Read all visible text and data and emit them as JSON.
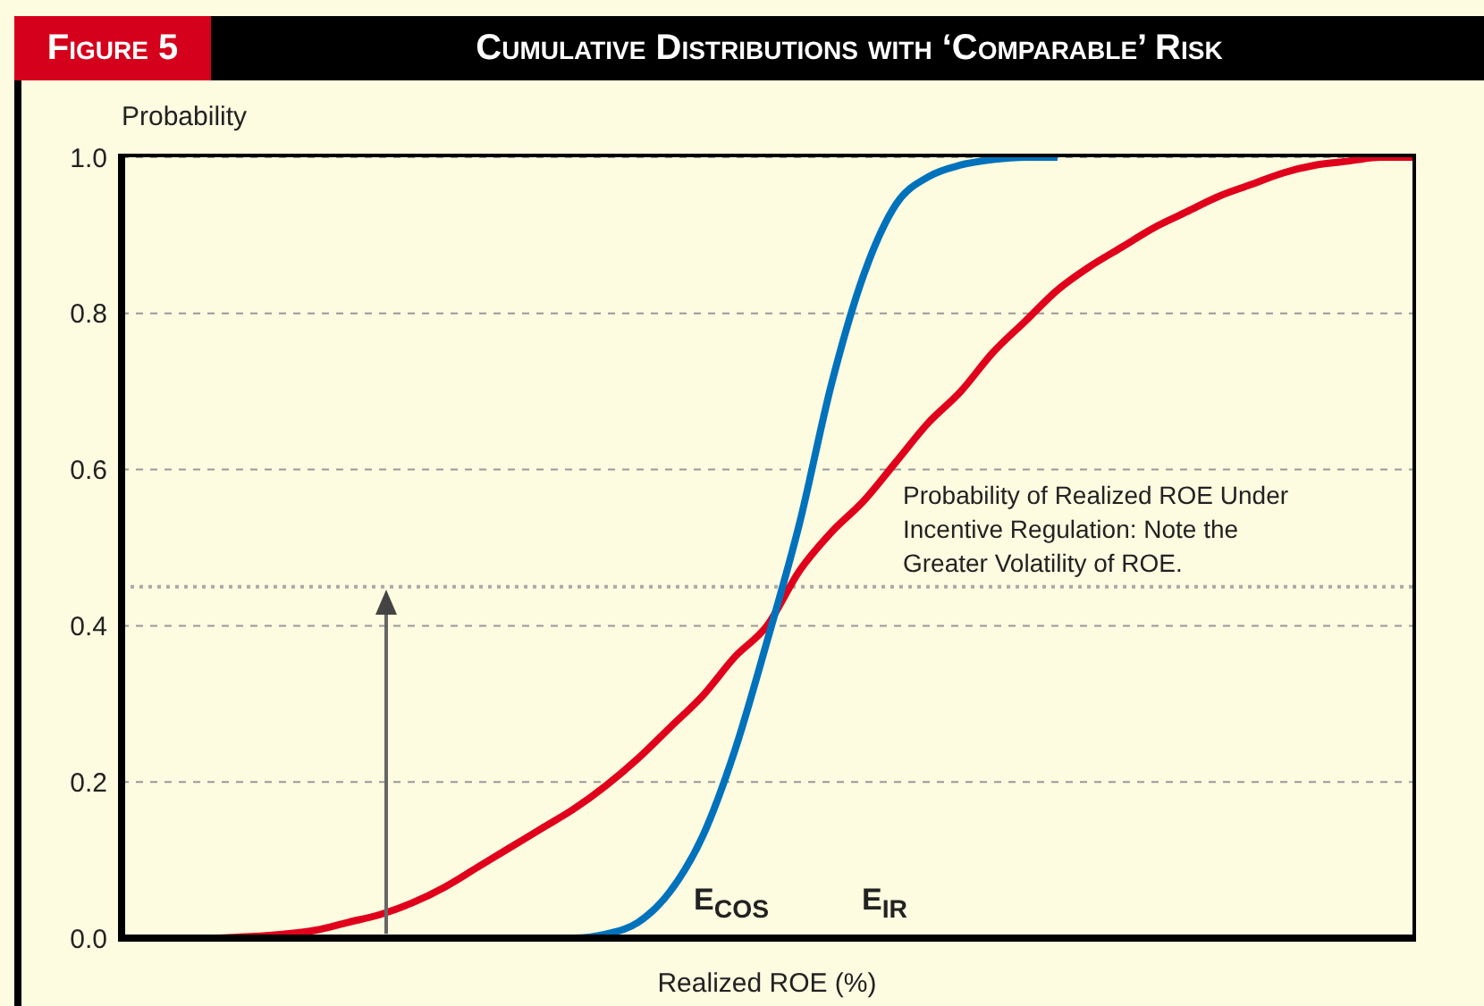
{
  "chart_data": {
    "type": "line",
    "title": "Cumulative Distributions with ‘Comparable’ Risk",
    "subtitle": "Figure 5",
    "xlabel": "Realized ROE (%)",
    "ylabel": "Probability",
    "categories": [
      null,
      null,
      null,
      null,
      null,
      null,
      null,
      null,
      null,
      null,
      null,
      null,
      null,
      null,
      null,
      null,
      null,
      null,
      null,
      null,
      null,
      null,
      null,
      null,
      null,
      null,
      null,
      null,
      null,
      null,
      null,
      null,
      null,
      null,
      null,
      null,
      null,
      null,
      null,
      null,
      null
    ],
    "series": [
      {
        "color": "#e0001b",
        "values": [
          null,
          null,
          null,
          0.0,
          0.002,
          0.005,
          0.01,
          0.02,
          0.03,
          0.045,
          0.065,
          0.09,
          0.115,
          0.14,
          0.165,
          0.195,
          0.23,
          0.27,
          0.31,
          0.36,
          0.4,
          0.47,
          0.52,
          0.56,
          0.61,
          0.66,
          0.7,
          0.75,
          0.79,
          0.83,
          0.86,
          0.885,
          0.91,
          0.93,
          0.95,
          0.965,
          0.98,
          0.99,
          0.995,
          1.0,
          1.0
        ]
      },
      {
        "color": "#0072bc",
        "values": [
          null,
          null,
          null,
          null,
          null,
          null,
          null,
          null,
          null,
          null,
          null,
          null,
          null,
          0.0,
          0.0,
          0.005,
          0.02,
          0.06,
          0.13,
          0.24,
          0.38,
          0.53,
          0.71,
          0.85,
          0.94,
          0.975,
          0.99,
          0.997,
          1.0,
          1.0,
          null,
          null,
          null,
          null,
          null,
          null,
          null,
          null,
          null,
          null,
          null
        ]
      }
    ],
    "ylim": [
      0,
      1
    ],
    "yticks": [
      {
        "value": 0,
        "label": "0.0"
      },
      {
        "value": 0.2,
        "label": "0.2"
      },
      {
        "value": 0.4,
        "label": "0.4"
      },
      {
        "value": 0.6,
        "label": "0.6"
      },
      {
        "value": 0.8,
        "label": "0.8"
      },
      {
        "value": 1,
        "label": "1.0"
      }
    ],
    "grid": "y",
    "marker": "none",
    "line_style": "solid",
    "ref_lines": [
      {
        "axis": "y",
        "value": 0.45,
        "color": "#aaaaaa",
        "line_style": "dotted"
      }
    ],
    "annotations": [
      "Probability of Realized ROE Under Incentive Regulation: Note the Greater Volatility of ROE.",
      "E$_{COS}$",
      "E$_{IR}$"
    ]
  }
}
